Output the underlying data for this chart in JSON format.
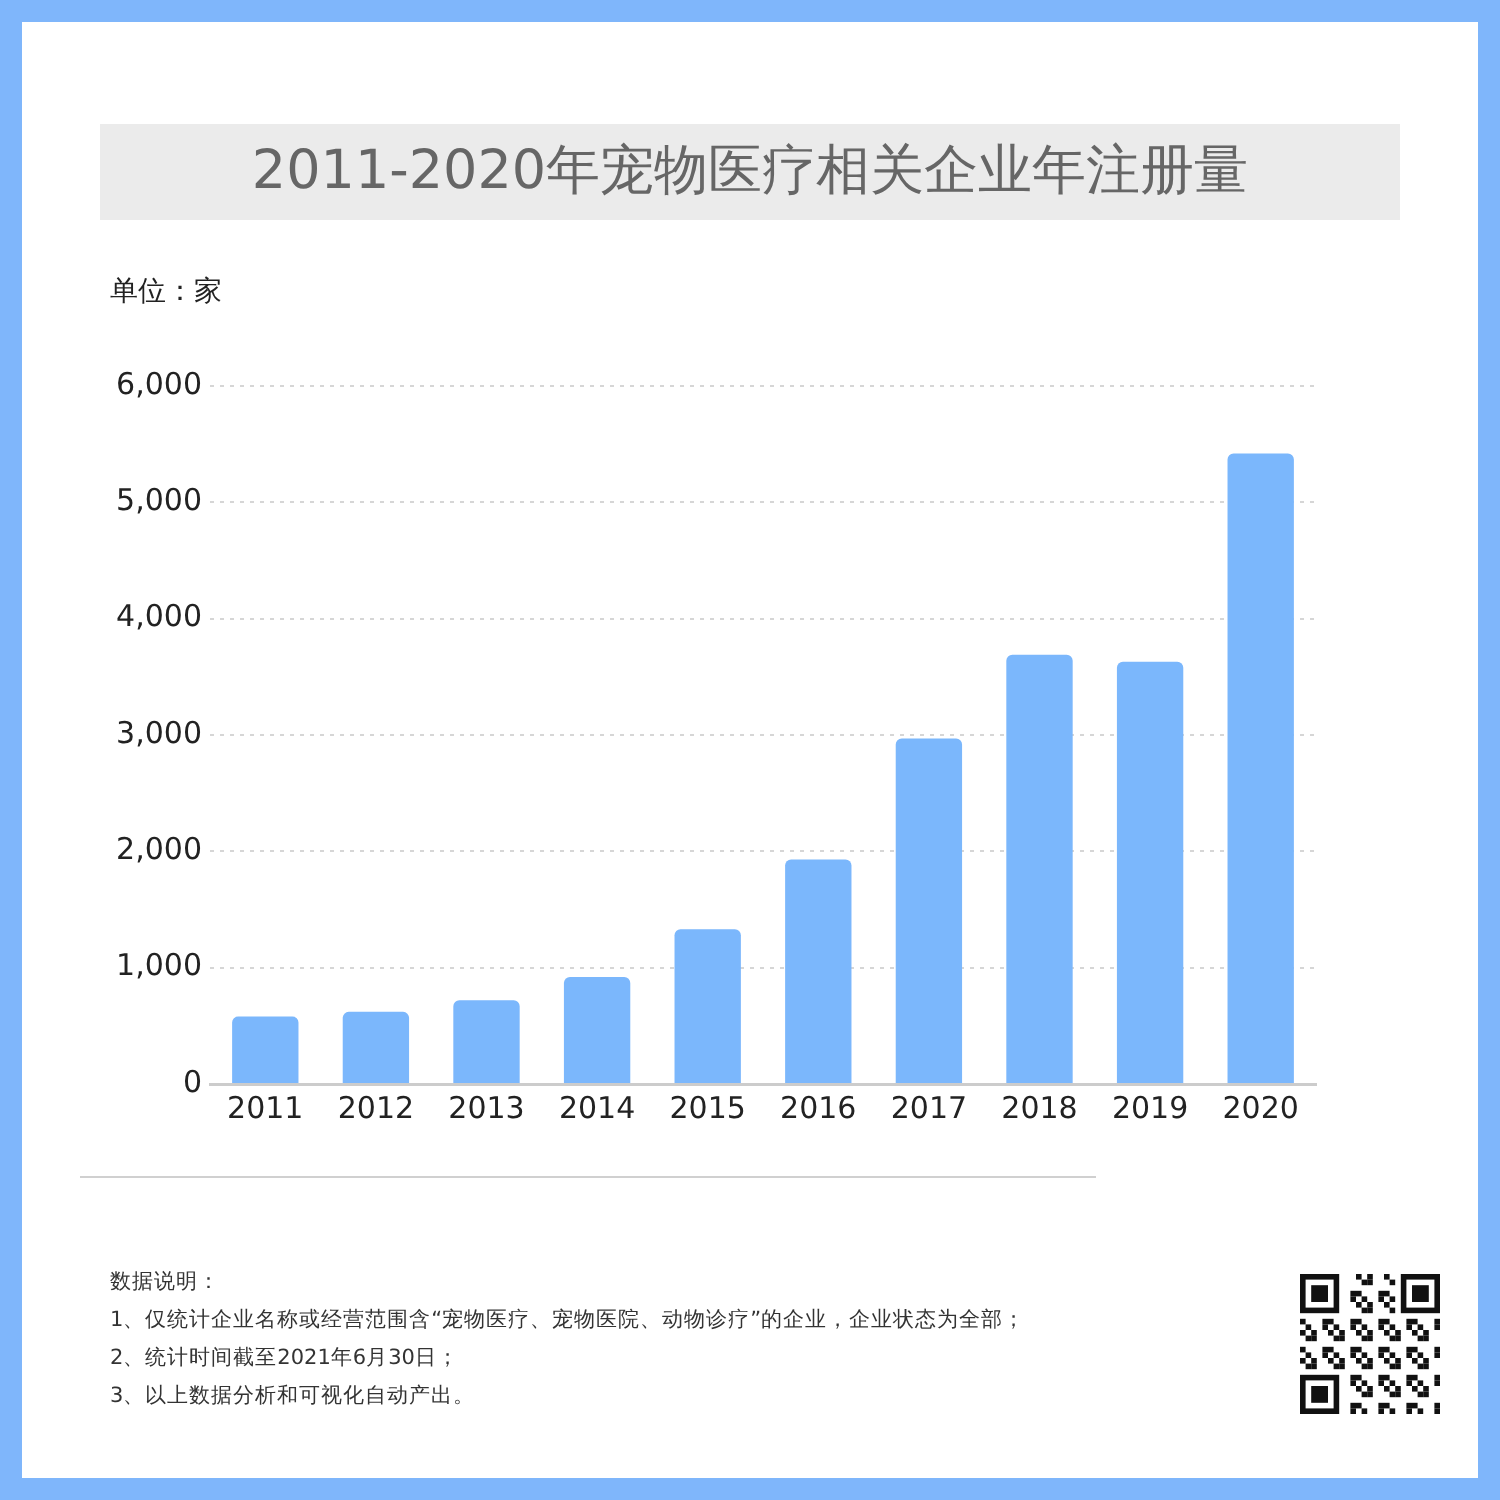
{
  "chart_data": {
    "type": "bar",
    "title": "2011-2020年宠物医疗相关企业年注册量",
    "ylabel": "单位：家",
    "categories": [
      "2011",
      "2012",
      "2013",
      "2014",
      "2015",
      "2016",
      "2017",
      "2018",
      "2019",
      "2020"
    ],
    "values": [
      580,
      620,
      720,
      920,
      1330,
      1930,
      2970,
      3690,
      3630,
      5420
    ],
    "color": "#7bb7fc",
    "ylim": [
      0,
      6000
    ],
    "yticks": [
      0,
      {
        "value": 1000,
        "label": "1,000"
      },
      {
        "value": 2000,
        "label": "2,000"
      },
      {
        "value": 3000,
        "label": "3,000"
      },
      {
        "value": 4000,
        "label": "4,000"
      },
      {
        "value": 5000,
        "label": "5,000"
      },
      {
        "value": 6000,
        "label": "6,000"
      }
    ],
    "grid": "y",
    "annotations": [
      "数据说明：",
      "1、仅统计企业名称或经营范围含“宠物医疗、宠物医院、动物诊疗”的企业，企业状态为全部；",
      "2、统计时间截至2021年6月30日；",
      "3、以上数据分析和可视化自动产出。"
    ]
  }
}
